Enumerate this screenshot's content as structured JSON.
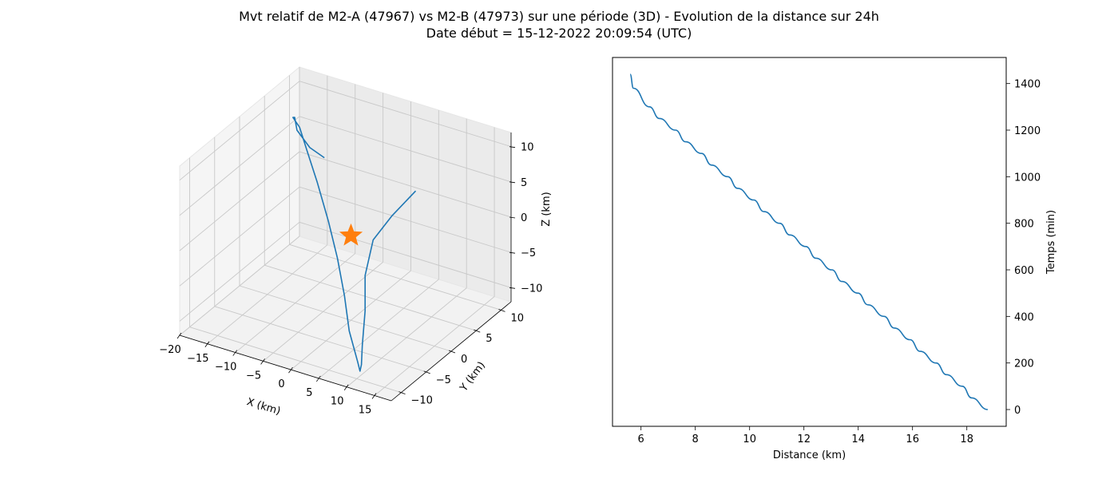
{
  "figure": {
    "title_line1": "Mvt relatif de M2-A (47967) vs M2-B (47973) sur une période (3D) - Evolution de la distance sur 24h",
    "title_line2": "Date début = 15-12-2022 20:09:54 (UTC)"
  },
  "chart_data": [
    {
      "type": "line3d",
      "xlabel": "X (km)",
      "ylabel": "Y (km)",
      "zlabel": "Z (km)",
      "x_ticks": [
        "−20",
        "−15",
        "−10",
        "−5",
        "0",
        "5",
        "10",
        "15"
      ],
      "y_ticks": [
        "−10",
        "−5",
        "0",
        "5",
        "10"
      ],
      "z_ticks": [
        "−10",
        "−5",
        "0",
        "5",
        "10"
      ],
      "xlim": [
        -20,
        18
      ],
      "ylim": [
        -12,
        12
      ],
      "zlim": [
        -12,
        12
      ],
      "grid": true,
      "series": [
        {
          "kind": "line",
          "color": "#1f77b4",
          "x": [
            17,
            14.5,
            12.5,
            11.5,
            11.5,
            11,
            9.5,
            7,
            3,
            -3,
            -7,
            -10.5,
            -13,
            -15,
            -16,
            -15.5,
            -14,
            -11,
            -7,
            -2,
            1.5
          ],
          "y": [
            -6,
            -8,
            -9.5,
            -10,
            -10,
            -10,
            -8.5,
            -6,
            -2,
            3,
            6.5,
            9,
            10,
            10,
            9,
            7,
            4,
            1,
            -3,
            -6,
            -7
          ],
          "z": [
            14,
            11,
            8,
            3,
            -2,
            -7,
            -11,
            -14,
            -16,
            -16,
            -14,
            -11,
            -7,
            -2,
            3,
            7.5,
            11,
            13.5,
            15,
            15.5,
            15.5
          ]
        },
        {
          "kind": "marker",
          "marker": "star",
          "color": "#ff7f0e",
          "x": [
            0
          ],
          "y": [
            0
          ],
          "z": [
            0
          ]
        }
      ]
    },
    {
      "type": "line",
      "xlabel": "Distance (km)",
      "ylabel": "Temps (min)",
      "xlim": [
        4.95,
        19.45
      ],
      "ylim": [
        -72,
        1512
      ],
      "x_ticks": [
        6,
        8,
        10,
        12,
        14,
        16,
        18
      ],
      "y_ticks": [
        0,
        200,
        400,
        600,
        800,
        1000,
        1200,
        1400
      ],
      "y_axis_side": "right",
      "grid": false,
      "series": [
        {
          "color": "#1f77b4",
          "x": [
            18.77,
            18.18,
            17.83,
            17.25,
            16.87,
            16.28,
            15.91,
            15.33,
            14.95,
            14.36,
            13.99,
            13.4,
            13.03,
            12.44,
            12.07,
            11.48,
            11.11,
            10.53,
            10.15,
            9.56,
            9.19,
            8.6,
            8.23,
            7.64,
            7.27,
            6.68,
            6.31,
            5.72,
            5.6
          ],
          "y": [
            0,
            50,
            100,
            150,
            200,
            250,
            300,
            350,
            400,
            450,
            500,
            550,
            600,
            650,
            700,
            750,
            800,
            850,
            900,
            950,
            1000,
            1050,
            1100,
            1150,
            1200,
            1250,
            1300,
            1380,
            1440
          ]
        }
      ]
    }
  ]
}
